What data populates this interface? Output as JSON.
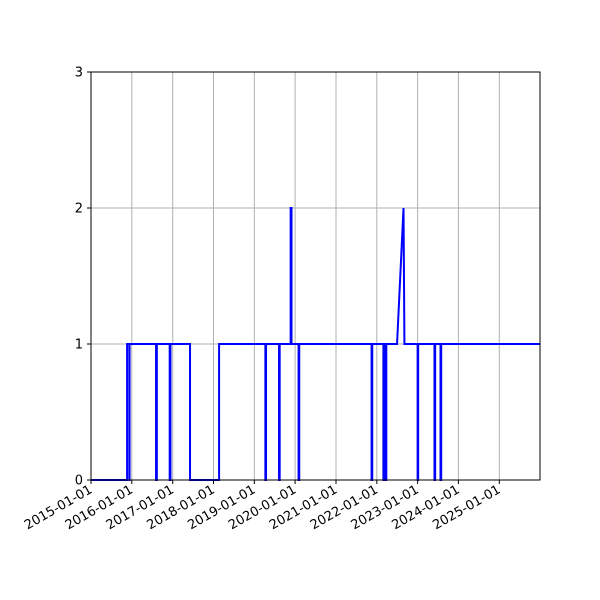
{
  "chart_data": {
    "type": "line",
    "title": "",
    "xlabel": "",
    "ylabel": "",
    "x_axis_type": "date",
    "xlim": [
      "2015-01-01",
      "2025-12-31"
    ],
    "ylim": [
      0,
      3
    ],
    "grid": true,
    "x_tick_labels": [
      "2015-01-01",
      "2016-01-01",
      "2017-01-01",
      "2018-01-01",
      "2019-01-01",
      "2020-01-01",
      "2021-01-01",
      "2022-01-01",
      "2023-01-01",
      "2024-01-01",
      "2025-01-01"
    ],
    "y_ticks": [
      0,
      1,
      2,
      3
    ],
    "y_tick_labels": [
      "0",
      "1",
      "2",
      "3"
    ],
    "series": [
      {
        "color": "#0000ff",
        "points": [
          [
            "2015-01-01",
            0
          ],
          [
            "2015-11-20",
            0
          ],
          [
            "2015-11-20",
            1
          ],
          [
            "2015-12-10",
            1
          ],
          [
            "2015-12-10",
            0
          ],
          [
            "2015-12-12",
            0
          ],
          [
            "2015-12-12",
            1
          ],
          [
            "2016-08-05",
            1
          ],
          [
            "2016-08-05",
            0
          ],
          [
            "2016-08-12",
            0
          ],
          [
            "2016-08-12",
            1
          ],
          [
            "2016-12-05",
            1
          ],
          [
            "2016-12-05",
            0
          ],
          [
            "2016-12-12",
            0
          ],
          [
            "2016-12-12",
            1
          ],
          [
            "2017-06-05",
            1
          ],
          [
            "2017-06-05",
            0
          ],
          [
            "2018-02-20",
            0
          ],
          [
            "2018-02-20",
            1
          ],
          [
            "2019-04-10",
            1
          ],
          [
            "2019-04-10",
            0
          ],
          [
            "2019-04-16",
            0
          ],
          [
            "2019-04-16",
            1
          ],
          [
            "2019-08-10",
            1
          ],
          [
            "2019-08-10",
            0
          ],
          [
            "2019-08-16",
            0
          ],
          [
            "2019-08-16",
            1
          ],
          [
            "2019-11-22",
            1
          ],
          [
            "2019-11-22",
            2
          ],
          [
            "2019-11-30",
            2
          ],
          [
            "2019-11-30",
            1
          ],
          [
            "2020-02-01",
            1
          ],
          [
            "2020-02-01",
            0
          ],
          [
            "2020-02-07",
            0
          ],
          [
            "2020-02-07",
            1
          ],
          [
            "2021-11-15",
            1
          ],
          [
            "2021-11-15",
            0
          ],
          [
            "2021-11-21",
            0
          ],
          [
            "2021-11-21",
            1
          ],
          [
            "2022-03-01",
            1
          ],
          [
            "2022-03-01",
            0
          ],
          [
            "2022-03-05",
            0
          ],
          [
            "2022-03-05",
            1
          ],
          [
            "2022-03-22",
            1
          ],
          [
            "2022-03-22",
            0
          ],
          [
            "2022-03-27",
            0
          ],
          [
            "2022-03-27",
            1
          ],
          [
            "2022-07-01",
            1
          ],
          [
            "2022-08-28",
            2
          ],
          [
            "2022-09-05",
            1
          ],
          [
            "2023-01-01",
            1
          ],
          [
            "2023-01-01",
            0
          ],
          [
            "2023-01-06",
            0
          ],
          [
            "2023-01-06",
            1
          ],
          [
            "2023-06-01",
            1
          ],
          [
            "2023-06-01",
            0
          ],
          [
            "2023-06-07",
            0
          ],
          [
            "2023-06-07",
            1
          ],
          [
            "2023-07-25",
            1
          ],
          [
            "2023-07-25",
            0
          ],
          [
            "2023-07-31",
            0
          ],
          [
            "2023-07-31",
            1
          ],
          [
            "2025-12-31",
            1
          ]
        ]
      }
    ]
  }
}
